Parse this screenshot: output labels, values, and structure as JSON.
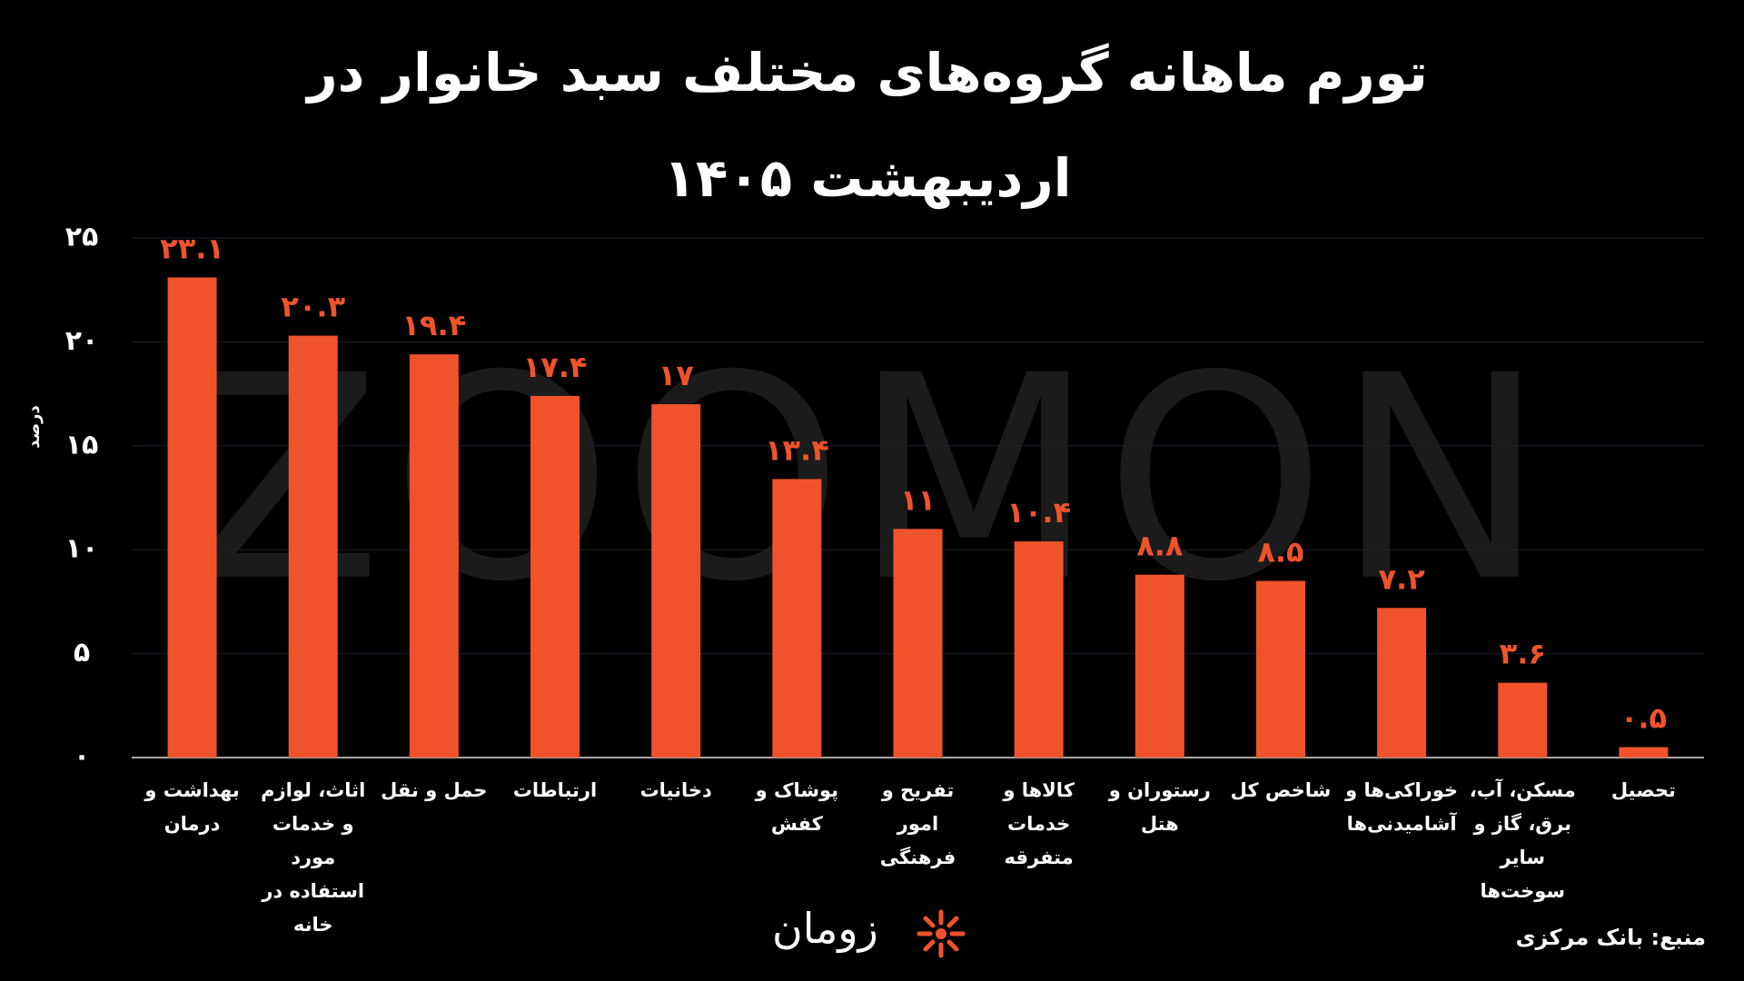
{
  "chart_data": {
    "type": "bar",
    "title": "تورم ماهانه گروه‌های مختلف سبد خانوار در اردیبهشت ۱۴۰۵",
    "y_label": "درصد",
    "watermark": "ZOOMON",
    "logo": "زومان",
    "source": "منبع: بانک مرکزی",
    "categories": [
      "بهداشت و درمان",
      "اثاث، لوازم و خدمات مورد استفاده در خانه",
      "حمل و نقل",
      "ارتباطات",
      "دخانیات",
      "پوشاک و کفش",
      "تفریح و امور فرهنگی",
      "کالاها و خدمات متفرقه",
      "رستوران و هتل",
      "شاخص کل",
      "خوراکی‌ها و آشامیدنی‌ها",
      "مسکن، آب، برق، گاز و سایر سوخت‌ها",
      "تحصیل"
    ],
    "values": [
      23.1,
      20.3,
      19.4,
      17.4,
      17,
      13.4,
      11,
      10.4,
      8.8,
      8.5,
      7.2,
      3.6,
      0.5
    ],
    "value_labels": [
      "۲۳.۱",
      "۲۰.۳",
      "۱۹.۴",
      "۱۷.۴",
      "۱۷",
      "۱۳.۴",
      "۱۱",
      "۱۰.۴",
      "۸.۸",
      "۸.۵",
      "۷.۲",
      "۳.۶",
      "۰.۵"
    ],
    "color": "#f0532c",
    "ylim": [
      0,
      25
    ],
    "yticks": [
      {
        "value": 0,
        "label": "۰"
      },
      {
        "value": 5,
        "label": "۵"
      },
      {
        "value": 10,
        "label": "۱۰"
      },
      {
        "value": 15,
        "label": "۱۵"
      },
      {
        "value": 20,
        "label": "۲۰"
      },
      {
        "value": 25,
        "label": "۲۵"
      }
    ],
    "grid": true
  }
}
